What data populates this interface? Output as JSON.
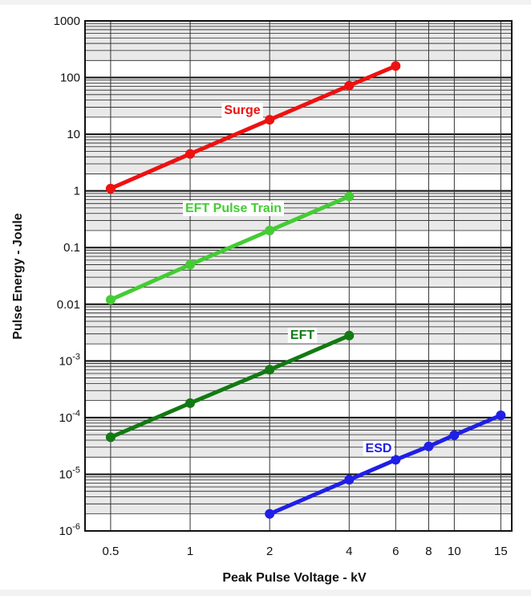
{
  "chart_data": {
    "type": "line",
    "title": "",
    "xlabel": "Peak Pulse Voltage - kV",
    "ylabel": "Pulse Energy - Joule",
    "x_scale": "log",
    "y_scale": "log",
    "xlim": [
      0.4,
      16.5
    ],
    "ylim": [
      1e-06,
      1000
    ],
    "grid": true,
    "legend": "none",
    "x_ticks": [
      0.5,
      1,
      2,
      4,
      6,
      8,
      10,
      15
    ],
    "x_tick_labels": [
      "0.5",
      "1",
      "2",
      "4",
      "6",
      "8",
      "10",
      "15"
    ],
    "y_ticks": [
      {
        "value": 1000,
        "label": "1000",
        "mant": "1000",
        "exp": ""
      },
      {
        "value": 100,
        "label": "100",
        "mant": "100",
        "exp": ""
      },
      {
        "value": 10,
        "label": "10",
        "mant": "10",
        "exp": ""
      },
      {
        "value": 1,
        "label": "1",
        "mant": "1",
        "exp": ""
      },
      {
        "value": 0.1,
        "label": "0.1",
        "mant": "0.1",
        "exp": ""
      },
      {
        "value": 0.01,
        "label": "0.01",
        "mant": "0.01",
        "exp": ""
      },
      {
        "value": 0.001,
        "label": "10-3",
        "mant": "10",
        "exp": "-3"
      },
      {
        "value": 0.0001,
        "label": "10-4",
        "mant": "10",
        "exp": "-4"
      },
      {
        "value": 1e-05,
        "label": "10-5",
        "mant": "10",
        "exp": "-5"
      },
      {
        "value": 1e-06,
        "label": "10-6",
        "mant": "10",
        "exp": "-6"
      }
    ],
    "series": [
      {
        "name": "Surge",
        "color": "#ee1111",
        "x": [
          0.5,
          1,
          2,
          4,
          6
        ],
        "y": [
          1.1,
          4.5,
          18,
          72,
          160
        ]
      },
      {
        "name": "EFT Pulse Train",
        "color": "#44cc33",
        "x": [
          0.5,
          1,
          2,
          4
        ],
        "y": [
          0.012,
          0.05,
          0.2,
          0.8
        ]
      },
      {
        "name": "EFT",
        "color": "#127a12",
        "x": [
          0.5,
          1,
          2,
          4
        ],
        "y": [
          4.5e-05,
          0.00018,
          0.0007,
          0.0028
        ]
      },
      {
        "name": "ESD",
        "color": "#1f1fe6",
        "x": [
          2,
          4,
          6,
          8,
          10,
          15
        ],
        "y": [
          2e-06,
          8e-06,
          1.8e-05,
          3.1e-05,
          4.9e-05,
          0.00011
        ]
      }
    ]
  }
}
